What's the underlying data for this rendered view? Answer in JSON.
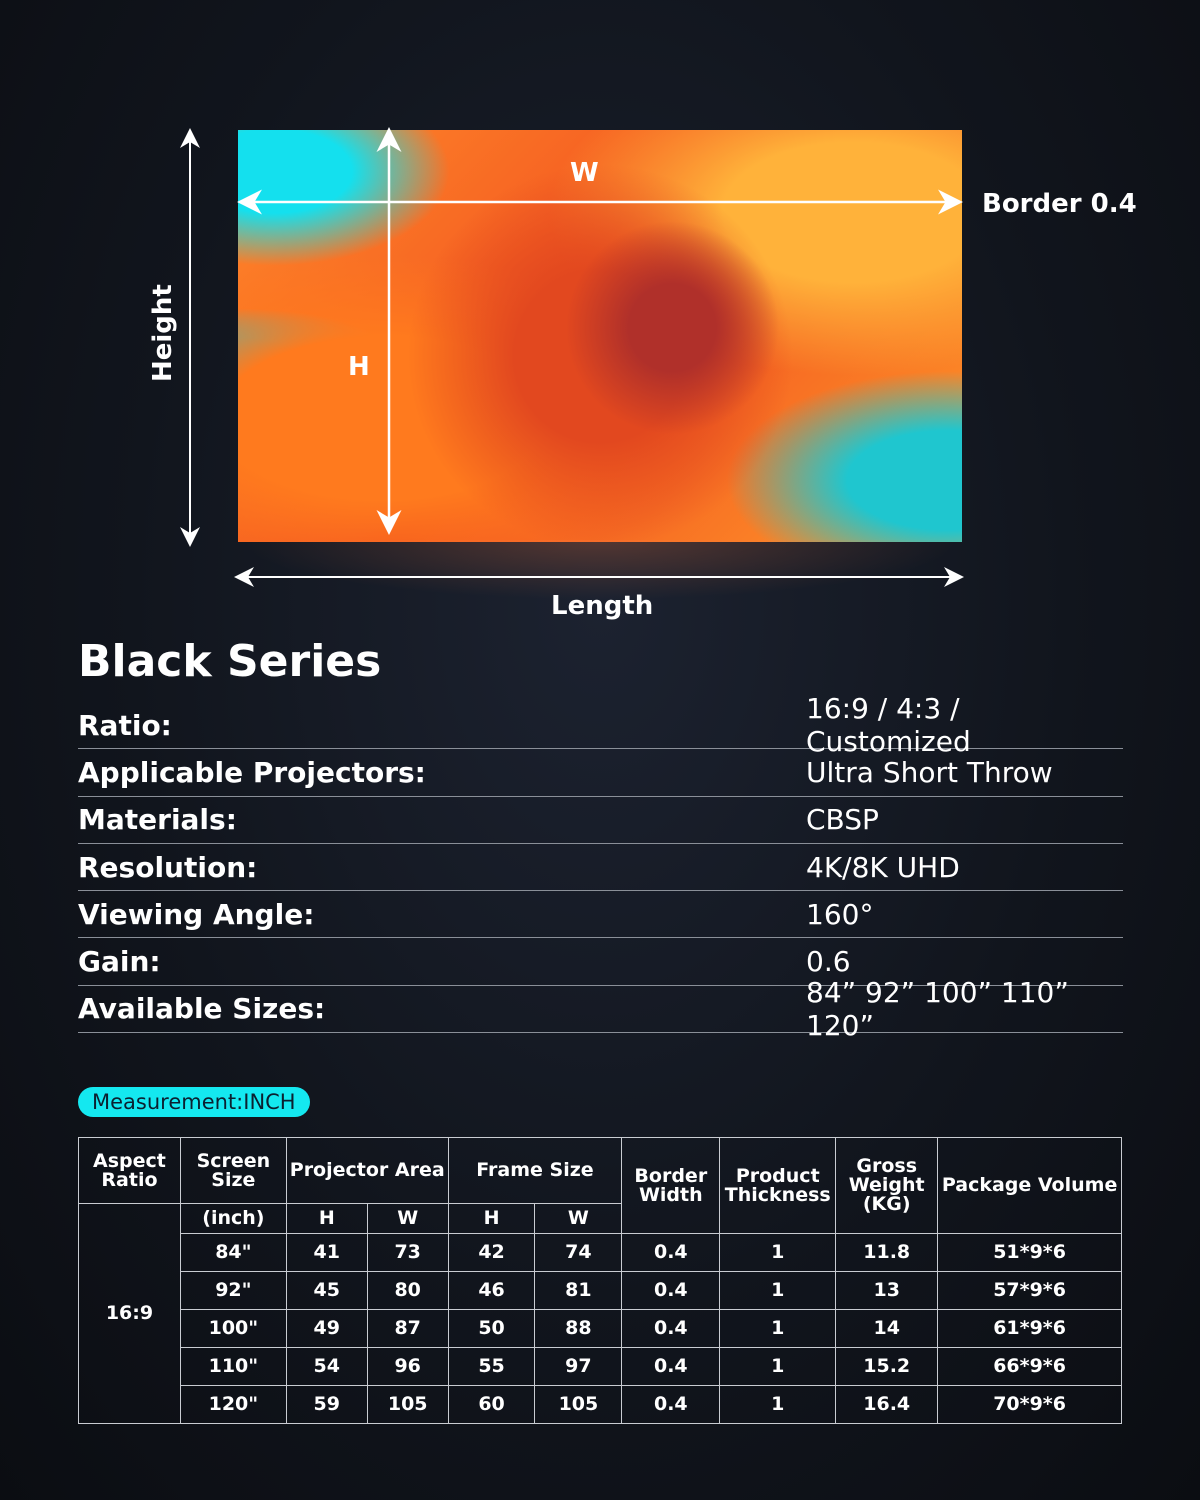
{
  "diagram": {
    "w_label": "W",
    "h_label": "H",
    "height_label": "Height",
    "length_label": "Length",
    "border_label": "Border 0.4"
  },
  "title": "Black Series",
  "specs": [
    {
      "label": "Ratio:",
      "value": "16:9 / 4:3 / Customized"
    },
    {
      "label": "Applicable Projectors:",
      "value": "Ultra Short Throw"
    },
    {
      "label": "Materials:",
      "value": "CBSP"
    },
    {
      "label": "Resolution:",
      "value": "4K/8K UHD"
    },
    {
      "label": "Viewing Angle:",
      "value": "160°"
    },
    {
      "label": "Gain:",
      "value": "0.6"
    },
    {
      "label": "Available Sizes:",
      "value": "84” 92” 100” 110” 120”"
    }
  ],
  "measurement_badge": "Measurement:INCH",
  "colors": {
    "badge": "#14e8f0",
    "background": "#11151d"
  },
  "table": {
    "headers": {
      "aspect": "Aspect Ratio",
      "screen": "Screen Size",
      "projector": "Projector Area",
      "frame": "Frame Size",
      "border": "Border Width",
      "thickness": "Product Thickness",
      "weight": "Gross Weight (KG)",
      "package": "Package Volume",
      "unit": "(inch)",
      "h": "H",
      "w": "W"
    },
    "aspect_value": "16:9",
    "rows": [
      [
        "84\"",
        "41",
        "73",
        "42",
        "74",
        "0.4",
        "1",
        "11.8",
        "51*9*6"
      ],
      [
        "92\"",
        "45",
        "80",
        "46",
        "81",
        "0.4",
        "1",
        "13",
        "57*9*6"
      ],
      [
        "100\"",
        "49",
        "87",
        "50",
        "88",
        "0.4",
        "1",
        "14",
        "61*9*6"
      ],
      [
        "110\"",
        "54",
        "96",
        "55",
        "97",
        "0.4",
        "1",
        "15.2",
        "66*9*6"
      ],
      [
        "120\"",
        "59",
        "105",
        "60",
        "105",
        "0.4",
        "1",
        "16.4",
        "70*9*6"
      ]
    ]
  }
}
